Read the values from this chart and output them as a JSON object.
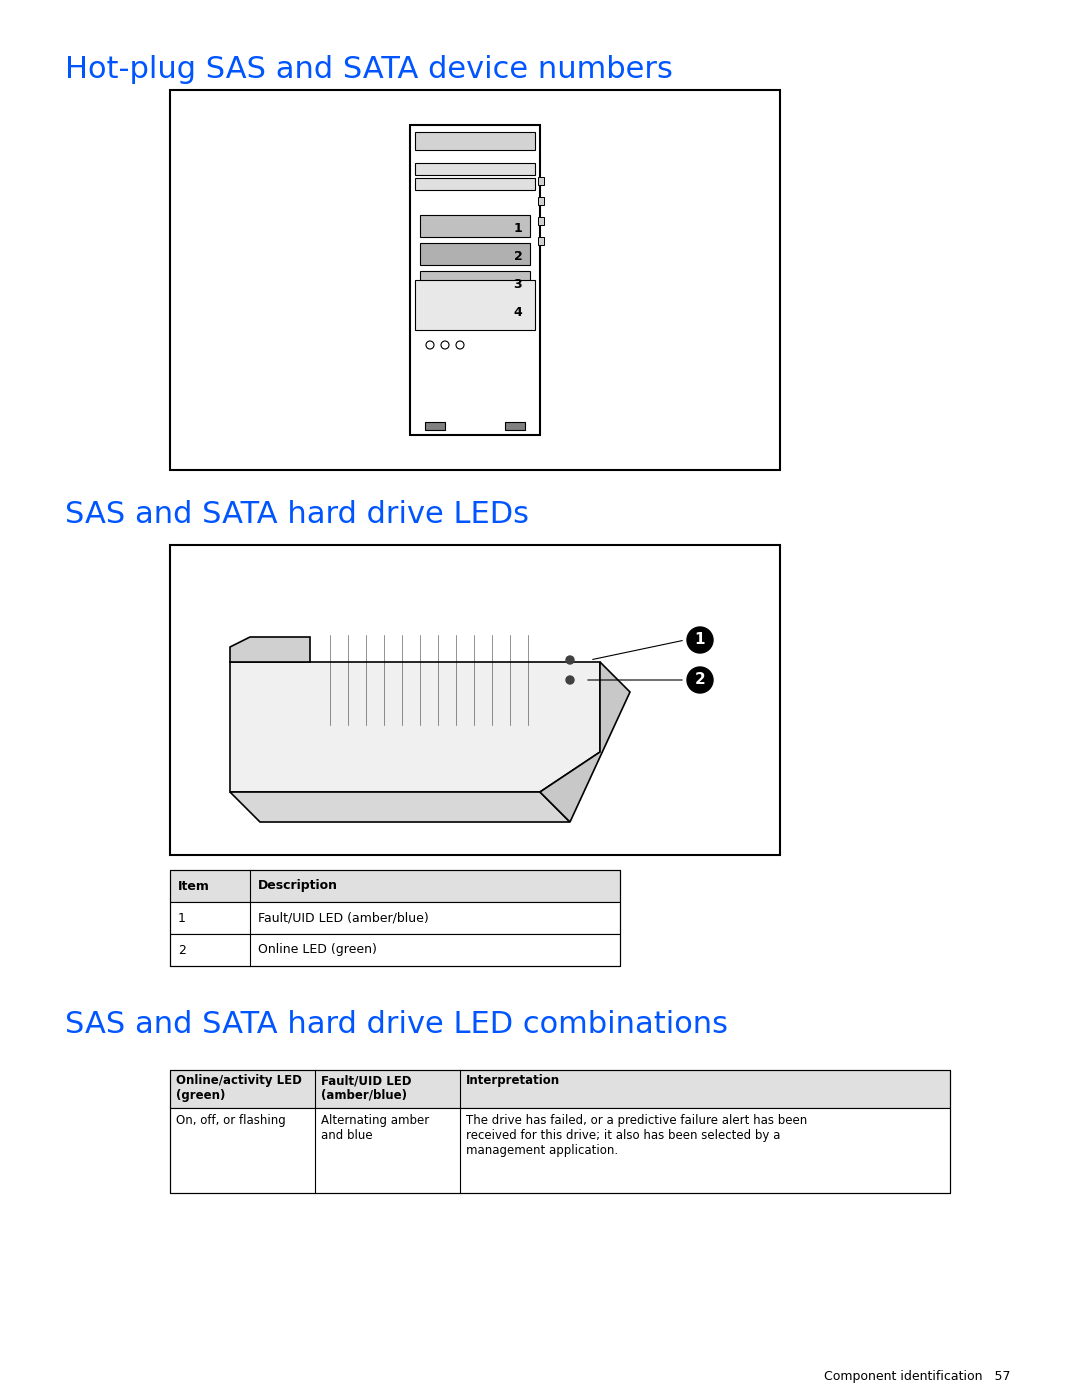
{
  "title1": "Hot-plug SAS and SATA device numbers",
  "title2": "SAS and SATA hard drive LEDs",
  "title3": "SAS and SATA hard drive LED combinations",
  "title_color": "#0055FF",
  "title_fontsize": 22,
  "background_color": "#ffffff",
  "footer_text": "Component identification   57",
  "table1_headers": [
    "Item",
    "Description"
  ],
  "table1_rows": [
    [
      "1",
      "Fault/UID LED (amber/blue)"
    ],
    [
      "2",
      "Online LED (green)"
    ]
  ],
  "table2_headers": [
    "Online/activity LED\n(green)",
    "Fault/UID LED\n(amber/blue)",
    "Interpretation"
  ],
  "table2_rows": [
    [
      "On, off, or flashing",
      "Alternating amber\nand blue",
      "The drive has failed, or a predictive failure alert has been\nreceived for this drive; it also has been selected by a\nmanagement application."
    ]
  ],
  "box_border_color": "#000000",
  "table_header_bg": "#d0d0d0",
  "text_color": "#000000"
}
